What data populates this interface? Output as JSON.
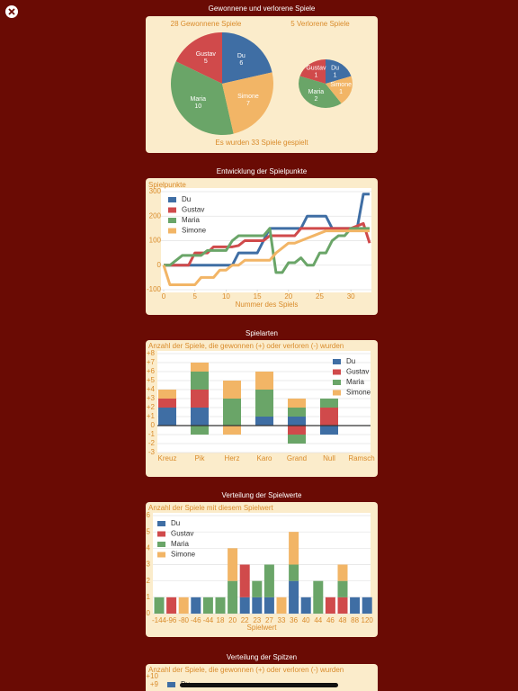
{
  "chart_data": [
    {
      "type": "pie",
      "heading": "Gewonnene und verlorene Spiele",
      "title": "28 Gewonnene Spiele",
      "footer": "Es wurden 33 Spiele gespielt",
      "categories": [
        "Du",
        "Gustav",
        "Maria",
        "Simone"
      ],
      "values": [
        6,
        5,
        10,
        7
      ],
      "colors": [
        "#3f6ea4",
        "#d04a4b",
        "#6aa568",
        "#f2b566"
      ]
    },
    {
      "type": "pie",
      "title": "5 Verlorene Spiele",
      "categories": [
        "Du",
        "Gustav",
        "Maria",
        "Simone"
      ],
      "values": [
        1,
        1,
        2,
        1
      ],
      "colors": [
        "#3f6ea4",
        "#d04a4b",
        "#6aa568",
        "#f2b566"
      ]
    },
    {
      "type": "line",
      "heading": "Entwicklung der Spielpunkte",
      "ylabel": "Spielpunkte",
      "xlabel": "Nummer des Spiels",
      "x": [
        0,
        1,
        2,
        3,
        4,
        5,
        6,
        7,
        8,
        9,
        10,
        11,
        12,
        13,
        14,
        15,
        16,
        17,
        18,
        19,
        20,
        21,
        22,
        23,
        24,
        25,
        26,
        27,
        28,
        29,
        30,
        31,
        32,
        33
      ],
      "series": [
        {
          "name": "Du",
          "color": "#3f6ea4",
          "values": [
            0,
            0,
            0,
            0,
            0,
            0,
            0,
            0,
            0,
            0,
            0,
            0,
            50,
            50,
            50,
            50,
            100,
            150,
            150,
            150,
            150,
            150,
            150,
            200,
            200,
            200,
            200,
            150,
            150,
            150,
            150,
            150,
            290,
            290
          ]
        },
        {
          "name": "Gustav",
          "color": "#d04a4b",
          "values": [
            0,
            0,
            0,
            0,
            0,
            50,
            50,
            50,
            75,
            75,
            75,
            75,
            80,
            100,
            100,
            100,
            100,
            120,
            120,
            120,
            120,
            120,
            150,
            150,
            150,
            150,
            150,
            150,
            150,
            150,
            150,
            160,
            170,
            90
          ]
        },
        {
          "name": "Maria",
          "color": "#6aa568",
          "values": [
            0,
            0,
            20,
            40,
            40,
            40,
            40,
            60,
            60,
            60,
            60,
            100,
            120,
            120,
            120,
            120,
            120,
            150,
            -30,
            -30,
            10,
            10,
            30,
            0,
            0,
            50,
            50,
            100,
            120,
            120,
            150,
            150,
            150,
            150
          ]
        },
        {
          "name": "Simone",
          "color": "#f2b566",
          "values": [
            0,
            -80,
            -80,
            -80,
            -80,
            -80,
            -50,
            -50,
            -50,
            -20,
            -20,
            0,
            0,
            20,
            20,
            20,
            20,
            20,
            50,
            70,
            90,
            90,
            100,
            110,
            120,
            130,
            140,
            140,
            140,
            140,
            140,
            140,
            140,
            140
          ]
        }
      ],
      "xlim": [
        0,
        33
      ],
      "ylim": [
        -100,
        300
      ],
      "xticks": [
        0,
        5,
        10,
        15,
        20,
        25,
        30
      ],
      "yticks": [
        -100,
        0,
        100,
        200,
        300
      ],
      "grid": true,
      "legend": "upper left"
    },
    {
      "type": "stacked_bar",
      "heading": "Spielarten",
      "ylabel": "Anzahl der Spiele, die gewonnen (+) oder verloren (-) wurden",
      "categories": [
        "Kreuz",
        "Pik",
        "Herz",
        "Karo",
        "Grand",
        "Null",
        "Ramsch"
      ],
      "series": [
        {
          "name": "Du",
          "color": "#3f6ea4",
          "values": [
            2,
            2,
            0,
            1,
            1,
            0,
            0
          ],
          "lost_values": [
            0,
            0,
            0,
            0,
            0,
            -1,
            0
          ]
        },
        {
          "name": "Gustav",
          "color": "#d04a4b",
          "values": [
            1,
            2,
            0,
            0,
            0,
            2,
            0
          ],
          "lost_values": [
            0,
            0,
            0,
            0,
            -1,
            0,
            0
          ]
        },
        {
          "name": "Maria",
          "color": "#6aa568",
          "values": [
            0,
            2,
            3,
            3,
            1,
            1,
            0
          ],
          "lost_values": [
            0,
            -1,
            0,
            0,
            -1,
            0,
            0
          ]
        },
        {
          "name": "Simone",
          "color": "#f2b566",
          "values": [
            1,
            1,
            2,
            2,
            1,
            0,
            0
          ],
          "lost_values": [
            0,
            0,
            -1,
            0,
            0,
            0,
            0
          ]
        }
      ],
      "ylim": [
        -3,
        8
      ],
      "yticks": [
        -3,
        -2,
        -1,
        0,
        {
          "value": 1,
          "label": "+1"
        },
        {
          "value": 2,
          "label": "+2"
        },
        {
          "value": 3,
          "label": "+3"
        },
        {
          "value": 4,
          "label": "+4"
        },
        {
          "value": 5,
          "label": "+5"
        },
        {
          "value": 6,
          "label": "+6"
        },
        {
          "value": 7,
          "label": "+7"
        },
        {
          "value": 8,
          "label": "+8"
        }
      ],
      "grid": true,
      "legend": "upper right"
    },
    {
      "type": "stacked_bar",
      "heading": "Verteilung der Spielwerte",
      "ylabel": "Anzahl der Spiele mit diesem Spielwert",
      "xlabel": "Spielwert",
      "categories": [
        "-144",
        "-96",
        "-80",
        "-46",
        "-44",
        "18",
        "20",
        "22",
        "23",
        "27",
        "33",
        "36",
        "40",
        "44",
        "46",
        "48",
        "88",
        "120"
      ],
      "series": [
        {
          "name": "Du",
          "color": "#3f6ea4",
          "values": [
            0,
            0,
            0,
            1,
            0,
            0,
            0,
            1,
            1,
            1,
            0,
            2,
            1,
            0,
            0,
            0,
            1,
            1
          ]
        },
        {
          "name": "Gustav",
          "color": "#d04a4b",
          "values": [
            0,
            1,
            0,
            0,
            0,
            0,
            0,
            2,
            0,
            0,
            0,
            0,
            0,
            0,
            1,
            1,
            0,
            0
          ]
        },
        {
          "name": "Maria",
          "color": "#6aa568",
          "values": [
            1,
            0,
            0,
            0,
            1,
            1,
            2,
            0,
            1,
            2,
            0,
            1,
            0,
            2,
            0,
            1,
            0,
            0
          ]
        },
        {
          "name": "Simone",
          "color": "#f2b566",
          "values": [
            0,
            0,
            1,
            0,
            0,
            0,
            2,
            0,
            0,
            0,
            1,
            2,
            0,
            0,
            0,
            1,
            0,
            0
          ]
        }
      ],
      "ylim": [
        0,
        6
      ],
      "yticks": [
        0,
        1,
        2,
        3,
        4,
        5,
        6
      ],
      "grid": true,
      "legend": "upper left"
    },
    {
      "type": "stacked_bar",
      "heading": "Verteilung der Spitzen",
      "ylabel": "Anzahl der Spiele, die gewonnen (+) oder verloren (-) wurden",
      "series": [
        {
          "name": "Du",
          "color": "#3f6ea4"
        }
      ],
      "yticks": [
        {
          "value": 10,
          "label": "+10"
        },
        {
          "value": 9,
          "label": "+9"
        }
      ]
    }
  ]
}
